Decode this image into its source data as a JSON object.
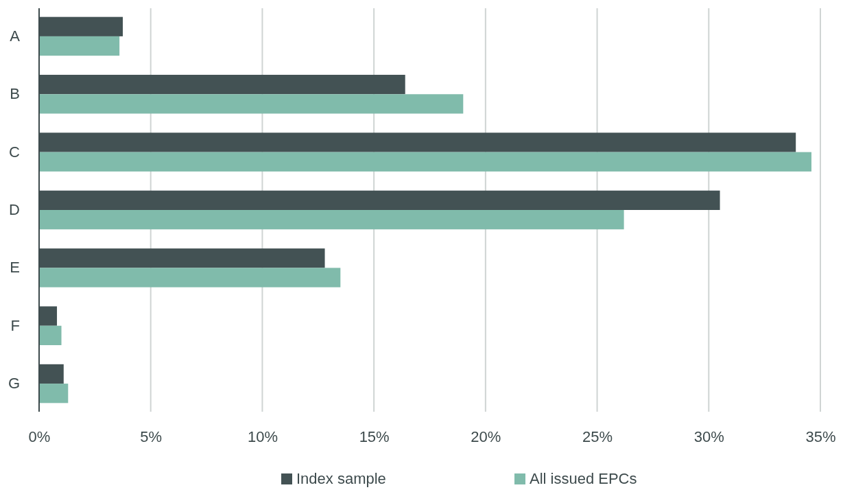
{
  "chart_data": {
    "type": "bar",
    "orientation": "horizontal",
    "categories": [
      "A",
      "B",
      "C",
      "D",
      "E",
      "F",
      "G"
    ],
    "series": [
      {
        "name": "Index sample",
        "color": "#435254",
        "values": [
          3.75,
          16.4,
          33.9,
          30.5,
          12.8,
          0.8,
          1.1
        ]
      },
      {
        "name": "All issued EPCs",
        "color": "#80bbab",
        "values": [
          3.6,
          19.0,
          34.6,
          26.2,
          13.5,
          1.0,
          1.3
        ]
      }
    ],
    "xlim": [
      0,
      35
    ],
    "xticks": [
      {
        "value": 0,
        "label": "0%"
      },
      {
        "value": 5,
        "label": "5%"
      },
      {
        "value": 10,
        "label": "10%"
      },
      {
        "value": 15,
        "label": "15%"
      },
      {
        "value": 20,
        "label": "20%"
      },
      {
        "value": 25,
        "label": "25%"
      },
      {
        "value": 30,
        "label": "30%"
      },
      {
        "value": 35,
        "label": "35%"
      }
    ],
    "grid": "x",
    "legend": "bottom"
  }
}
